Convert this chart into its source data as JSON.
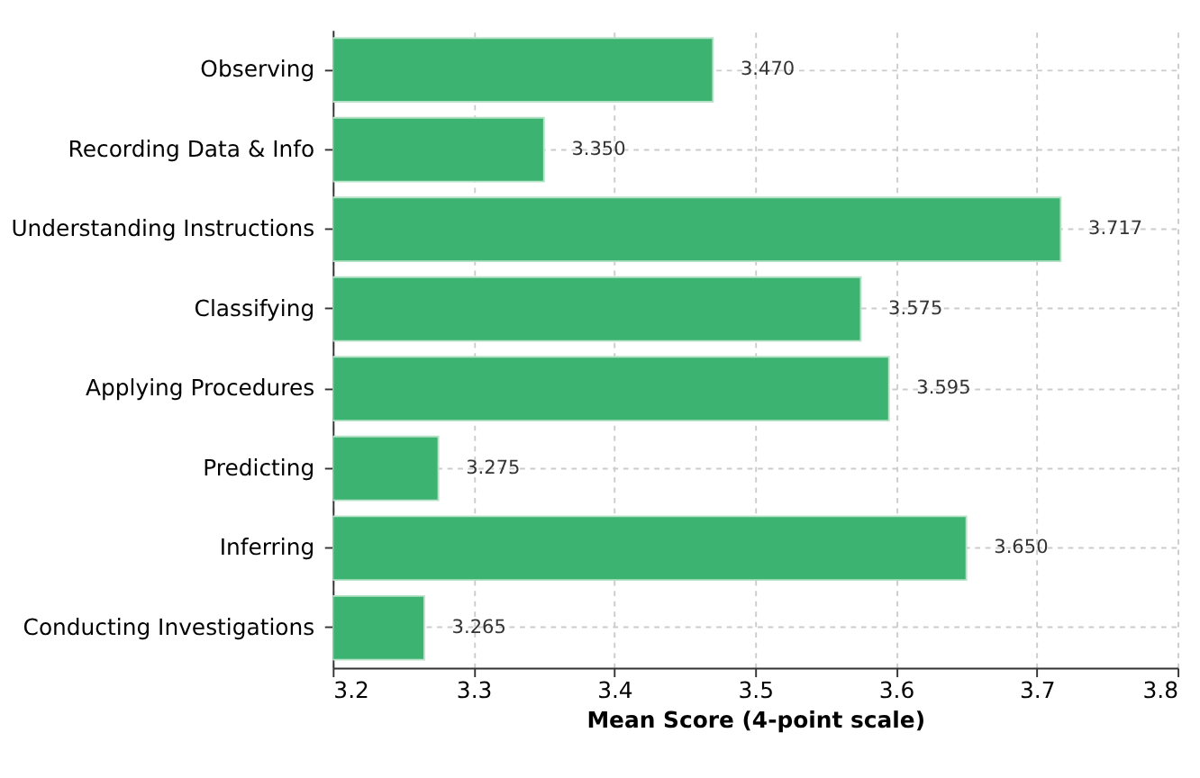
{
  "chart_data": {
    "type": "bar",
    "orientation": "horizontal",
    "xlabel": "Mean Score (4-point scale)",
    "categories": [
      "Observing",
      "Recording Data & Info",
      "Understanding Instructions",
      "Classifying",
      "Applying Procedures",
      "Predicting",
      "Inferring",
      "Conducting Investigations"
    ],
    "values": [
      3.47,
      3.35,
      3.717,
      3.575,
      3.595,
      3.275,
      3.65,
      3.265
    ],
    "value_labels": [
      "3.470",
      "3.350",
      "3.717",
      "3.575",
      "3.595",
      "3.275",
      "3.650",
      "3.265"
    ],
    "color": "#3cb371",
    "xlim": [
      3.2,
      3.8
    ],
    "xticks": [
      3.2,
      3.3,
      3.4,
      3.5,
      3.6,
      3.7,
      3.8
    ],
    "grid": true
  }
}
